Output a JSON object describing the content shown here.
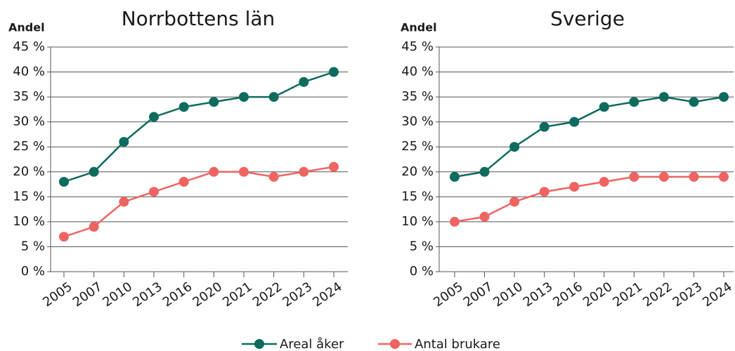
{
  "chart_data": [
    {
      "type": "line",
      "title": "Norrbottens län",
      "ylabel": "Andel",
      "categories": [
        "2005",
        "2007",
        "2010",
        "2013",
        "2016",
        "2020",
        "2021",
        "2022",
        "2023",
        "2024"
      ],
      "series": [
        {
          "name": "Areal åker",
          "color": "#0e6b5e",
          "values": [
            18,
            20,
            26,
            31,
            33,
            34,
            35,
            35,
            38,
            40
          ]
        },
        {
          "name": "Antal brukare",
          "color": "#ef6461",
          "values": [
            7,
            9,
            14,
            16,
            18,
            20,
            20,
            19,
            20,
            21
          ]
        }
      ],
      "ylim": [
        0,
        45
      ],
      "yticks": [
        {
          "value": 0,
          "label": "0 %"
        },
        {
          "value": 5,
          "label": "5 %"
        },
        {
          "value": 10,
          "label": "10 %"
        },
        {
          "value": 15,
          "label": "15 %"
        },
        {
          "value": 20,
          "label": "20 %"
        },
        {
          "value": 25,
          "label": "25 %"
        },
        {
          "value": 30,
          "label": "30 %"
        },
        {
          "value": 35,
          "label": "35 %"
        },
        {
          "value": 40,
          "label": "40 %"
        },
        {
          "value": 45,
          "label": "45 %"
        }
      ],
      "grid": true
    },
    {
      "type": "line",
      "title": "Sverige",
      "ylabel": "Andel",
      "categories": [
        "2005",
        "2007",
        "2010",
        "2013",
        "2016",
        "2020",
        "2021",
        "2022",
        "2023",
        "2024"
      ],
      "series": [
        {
          "name": "Areal åker",
          "color": "#0e6b5e",
          "values": [
            19,
            20,
            25,
            29,
            30,
            33,
            34,
            35,
            34,
            35
          ]
        },
        {
          "name": "Antal brukare",
          "color": "#ef6461",
          "values": [
            10,
            11,
            14,
            16,
            17,
            18,
            19,
            19,
            19,
            19
          ]
        }
      ],
      "ylim": [
        0,
        45
      ],
      "yticks": [
        {
          "value": 0,
          "label": "0 %"
        },
        {
          "value": 5,
          "label": "5 %"
        },
        {
          "value": 10,
          "label": "10 %"
        },
        {
          "value": 15,
          "label": "15 %"
        },
        {
          "value": 20,
          "label": "20 %"
        },
        {
          "value": 25,
          "label": "25 %"
        },
        {
          "value": 30,
          "label": "30 %"
        },
        {
          "value": 35,
          "label": "35 %"
        },
        {
          "value": 40,
          "label": "40 %"
        },
        {
          "value": 45,
          "label": "45 %"
        }
      ],
      "grid": true
    }
  ]
}
